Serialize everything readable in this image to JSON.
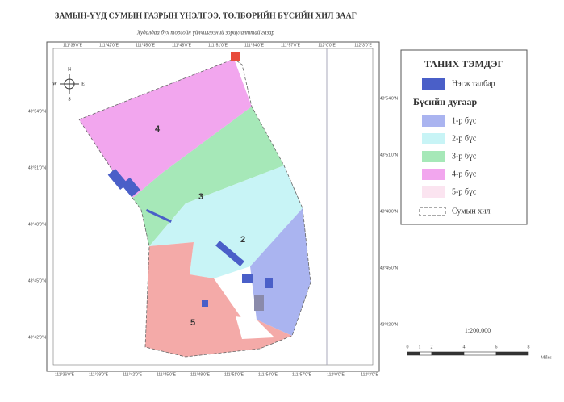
{
  "title": "ЗАМЫН-ҮҮД СУМЫН ГАЗРЫН ҮНЭЛГЭЭ, ТӨЛБӨРИЙН БҮСИЙН ХИЛ ЗААГ",
  "subtitle": "Худалдаа бүх торгойн үйлчилгээний зориулалттай газар",
  "map": {
    "zones": [
      "4",
      "3",
      "2",
      "5"
    ],
    "compass": [
      "N",
      "E",
      "S",
      "W"
    ],
    "top_coords": [
      "111°39'0\"E",
      "111°42'0\"E",
      "111°45'0\"E",
      "111°48'0\"E",
      "111°51'0\"E",
      "111°54'0\"E",
      "111°57'0\"E",
      "112°0'0\"E",
      "112°3'0\"E"
    ],
    "bottom_coords": [
      "111°36'0\"E",
      "111°39'0\"E",
      "111°42'0\"E",
      "111°45'0\"E",
      "111°48'0\"E",
      "111°51'0\"E",
      "111°54'0\"E",
      "111°57'0\"E",
      "112°0'0\"E",
      "112°3'0\"E"
    ],
    "left_coords": [
      "43°54'0\"N",
      "43°51'0\"N",
      "43°48'0\"N",
      "43°45'0\"N",
      "43°42'0\"N"
    ],
    "right_coords": [
      "43°54'0\"N",
      "43°51'0\"N",
      "43°48'0\"N",
      "43°45'0\"N",
      "43°42'0\"N"
    ]
  },
  "legend": {
    "title": "ТАНИХ ТЭМДЭГ",
    "parcel": "Нэгж талбар",
    "zone_heading": "Бүсийн дугаар",
    "zones": [
      "1-р бүс",
      "2-р бүс",
      "3-р бүс",
      "4-р бүс",
      "5-р бүс"
    ],
    "boundary": "Сумын хил"
  },
  "scale": {
    "ratio": "1:200,000",
    "ticks": [
      "0",
      "1",
      "2",
      "4",
      "6",
      "8"
    ],
    "unit": "Miles"
  }
}
